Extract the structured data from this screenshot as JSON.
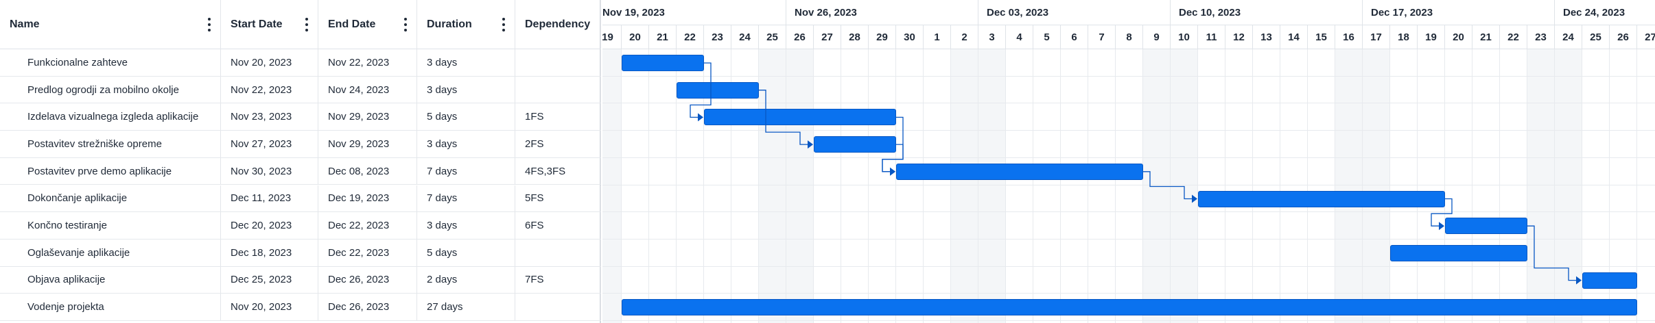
{
  "grid": {
    "columns": [
      {
        "label": "Name",
        "has_menu": true
      },
      {
        "label": "Start Date",
        "has_menu": true
      },
      {
        "label": "End Date",
        "has_menu": true
      },
      {
        "label": "Duration",
        "has_menu": true
      },
      {
        "label": "Dependency",
        "has_menu": false
      }
    ]
  },
  "timeline": {
    "weeks": [
      "Nov 19, 2023",
      "Nov 26, 2023",
      "Dec 03, 2023",
      "Dec 10, 2023",
      "Dec 17, 2023",
      "Dec 24, 2023"
    ],
    "days": [
      "19",
      "20",
      "21",
      "22",
      "23",
      "24",
      "25",
      "26",
      "27",
      "28",
      "29",
      "30",
      "1",
      "2",
      "3",
      "4",
      "5",
      "6",
      "7",
      "8",
      "9",
      "10",
      "11",
      "12",
      "13",
      "14",
      "15",
      "16",
      "17",
      "18",
      "19",
      "20",
      "21",
      "22",
      "23",
      "24",
      "25",
      "26",
      "27"
    ],
    "first_day": "2023-11-19",
    "weekend_indices": [
      0,
      6,
      7,
      13,
      14,
      20,
      21,
      27,
      28,
      34,
      35
    ],
    "bar_color": "#0a72ef",
    "link_color": "#0857c3"
  },
  "tasks": [
    {
      "name": "Funkcionalne zahteve",
      "start": "Nov 20, 2023",
      "end": "Nov 22, 2023",
      "duration": "3 days",
      "dependency": "",
      "bar_start_day": 1,
      "bar_days": 3
    },
    {
      "name": "Predlog ogrodji za mobilno okolje",
      "start": "Nov 22, 2023",
      "end": "Nov 24, 2023",
      "duration": "3 days",
      "dependency": "",
      "bar_start_day": 3,
      "bar_days": 3
    },
    {
      "name": "Izdelava vizualnega izgleda aplikacije",
      "start": "Nov 23, 2023",
      "end": "Nov 29, 2023",
      "duration": "5 days",
      "dependency": "1FS",
      "bar_start_day": 4,
      "bar_days": 7
    },
    {
      "name": "Postavitev strežniške opreme",
      "start": "Nov 27, 2023",
      "end": "Nov 29, 2023",
      "duration": "3 days",
      "dependency": "2FS",
      "bar_start_day": 8,
      "bar_days": 3
    },
    {
      "name": "Postavitev prve demo aplikacije",
      "start": "Nov 30, 2023",
      "end": "Dec 08, 2023",
      "duration": "7 days",
      "dependency": "4FS,3FS",
      "bar_start_day": 11,
      "bar_days": 9
    },
    {
      "name": "Dokončanje aplikacije",
      "start": "Dec 11, 2023",
      "end": "Dec 19, 2023",
      "duration": "7 days",
      "dependency": "5FS",
      "bar_start_day": 22,
      "bar_days": 9
    },
    {
      "name": "Končno testiranje",
      "start": "Dec 20, 2023",
      "end": "Dec 22, 2023",
      "duration": "3 days",
      "dependency": "6FS",
      "bar_start_day": 31,
      "bar_days": 3
    },
    {
      "name": "Oglaševanje aplikacije",
      "start": "Dec 18, 2023",
      "end": "Dec 22, 2023",
      "duration": "5 days",
      "dependency": "",
      "bar_start_day": 29,
      "bar_days": 5
    },
    {
      "name": "Objava aplikacije",
      "start": "Dec 25, 2023",
      "end": "Dec 26, 2023",
      "duration": "2 days",
      "dependency": "7FS",
      "bar_start_day": 36,
      "bar_days": 2
    },
    {
      "name": "Vodenje projekta",
      "start": "Nov 20, 2023",
      "end": "Dec 26, 2023",
      "duration": "27 days",
      "dependency": "",
      "bar_start_day": 1,
      "bar_days": 37
    }
  ],
  "links": [
    {
      "from": 0,
      "to": 2
    },
    {
      "from": 1,
      "to": 3
    },
    {
      "from": 3,
      "to": 4
    },
    {
      "from": 2,
      "to": 4
    },
    {
      "from": 4,
      "to": 5
    },
    {
      "from": 5,
      "to": 6
    },
    {
      "from": 6,
      "to": 8
    }
  ]
}
